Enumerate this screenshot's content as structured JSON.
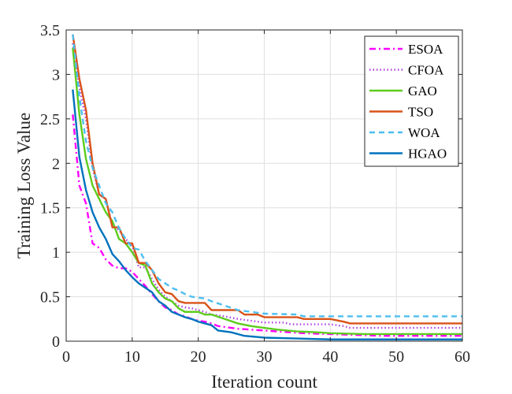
{
  "chart_data": {
    "type": "line",
    "title": "",
    "xlabel": "Iteration count",
    "ylabel": "Training Loss Value",
    "xlim": [
      0,
      60
    ],
    "ylim": [
      0,
      3.5
    ],
    "xticks": [
      0,
      10,
      20,
      30,
      40,
      50,
      60
    ],
    "yticks": [
      0,
      0.5,
      1,
      1.5,
      2,
      2.5,
      3,
      3.5
    ],
    "xtick_labels": [
      "0",
      "10",
      "20",
      "30",
      "40",
      "50",
      "60"
    ],
    "ytick_labels": [
      "0",
      "0.5",
      "1",
      "1.5",
      "2",
      "2.5",
      "3",
      "3.5"
    ],
    "grid": true,
    "legend_position": "top-right",
    "series": [
      {
        "name": "ESOA",
        "color": "#ff00ff",
        "dash": "dashdot",
        "points": [
          [
            1,
            2.55
          ],
          [
            2,
            1.75
          ],
          [
            3,
            1.55
          ],
          [
            4,
            1.1
          ],
          [
            5,
            1.05
          ],
          [
            6,
            0.92
          ],
          [
            7,
            0.85
          ],
          [
            8,
            0.82
          ],
          [
            9,
            0.82
          ],
          [
            10,
            0.78
          ],
          [
            11,
            0.7
          ],
          [
            12,
            0.62
          ],
          [
            13,
            0.53
          ],
          [
            14,
            0.45
          ],
          [
            15,
            0.38
          ],
          [
            16,
            0.35
          ],
          [
            17,
            0.3
          ],
          [
            18,
            0.28
          ],
          [
            19,
            0.25
          ],
          [
            20,
            0.23
          ],
          [
            21,
            0.22
          ],
          [
            22,
            0.2
          ],
          [
            23,
            0.17
          ],
          [
            24,
            0.16
          ],
          [
            25,
            0.15
          ],
          [
            26,
            0.14
          ],
          [
            28,
            0.13
          ],
          [
            30,
            0.12
          ],
          [
            32,
            0.11
          ],
          [
            34,
            0.1
          ],
          [
            36,
            0.09
          ],
          [
            38,
            0.085
          ],
          [
            40,
            0.08
          ],
          [
            42,
            0.075
          ],
          [
            44,
            0.07
          ],
          [
            46,
            0.065
          ],
          [
            48,
            0.06
          ],
          [
            50,
            0.06
          ],
          [
            55,
            0.06
          ],
          [
            60,
            0.06
          ]
        ]
      },
      {
        "name": "CFOA",
        "color": "#b03fe0",
        "dash": "dotted",
        "points": [
          [
            1,
            3.35
          ],
          [
            2,
            2.85
          ],
          [
            3,
            2.5
          ],
          [
            4,
            1.95
          ],
          [
            5,
            1.65
          ],
          [
            6,
            1.6
          ],
          [
            7,
            1.3
          ],
          [
            8,
            1.25
          ],
          [
            9,
            1.15
          ],
          [
            10,
            1.07
          ],
          [
            11,
            0.83
          ],
          [
            12,
            0.83
          ],
          [
            13,
            0.7
          ],
          [
            14,
            0.58
          ],
          [
            15,
            0.5
          ],
          [
            16,
            0.45
          ],
          [
            17,
            0.4
          ],
          [
            18,
            0.38
          ],
          [
            19,
            0.37
          ],
          [
            20,
            0.35
          ],
          [
            21,
            0.33
          ],
          [
            22,
            0.3
          ],
          [
            24,
            0.28
          ],
          [
            26,
            0.25
          ],
          [
            28,
            0.23
          ],
          [
            30,
            0.21
          ],
          [
            33,
            0.21
          ],
          [
            34,
            0.19
          ],
          [
            40,
            0.19
          ],
          [
            42,
            0.17
          ],
          [
            43,
            0.15
          ],
          [
            50,
            0.15
          ],
          [
            60,
            0.15
          ]
        ]
      },
      {
        "name": "GAO",
        "color": "#5ccc1e",
        "dash": "solid",
        "points": [
          [
            1,
            3.3
          ],
          [
            2,
            2.55
          ],
          [
            3,
            2.05
          ],
          [
            4,
            1.75
          ],
          [
            5,
            1.6
          ],
          [
            6,
            1.45
          ],
          [
            7,
            1.35
          ],
          [
            8,
            1.15
          ],
          [
            9,
            1.1
          ],
          [
            10,
            1.0
          ],
          [
            11,
            0.88
          ],
          [
            12,
            0.85
          ],
          [
            13,
            0.65
          ],
          [
            14,
            0.55
          ],
          [
            15,
            0.48
          ],
          [
            16,
            0.45
          ],
          [
            17,
            0.37
          ],
          [
            18,
            0.33
          ],
          [
            20,
            0.33
          ],
          [
            21,
            0.3
          ],
          [
            22,
            0.3
          ],
          [
            24,
            0.25
          ],
          [
            26,
            0.2
          ],
          [
            28,
            0.17
          ],
          [
            30,
            0.15
          ],
          [
            32,
            0.13
          ],
          [
            35,
            0.11
          ],
          [
            38,
            0.1
          ],
          [
            40,
            0.09
          ],
          [
            45,
            0.08
          ],
          [
            50,
            0.08
          ],
          [
            60,
            0.08
          ]
        ]
      },
      {
        "name": "TSO",
        "color": "#d95319",
        "dash": "solid",
        "points": [
          [
            1,
            3.45
          ],
          [
            2,
            2.95
          ],
          [
            3,
            2.6
          ],
          [
            4,
            2.0
          ],
          [
            5,
            1.65
          ],
          [
            6,
            1.6
          ],
          [
            7,
            1.28
          ],
          [
            8,
            1.28
          ],
          [
            9,
            1.1
          ],
          [
            10,
            1.1
          ],
          [
            11,
            0.88
          ],
          [
            12,
            0.88
          ],
          [
            13,
            0.8
          ],
          [
            14,
            0.65
          ],
          [
            15,
            0.55
          ],
          [
            16,
            0.53
          ],
          [
            17,
            0.45
          ],
          [
            18,
            0.43
          ],
          [
            21,
            0.43
          ],
          [
            22,
            0.35
          ],
          [
            26,
            0.35
          ],
          [
            27,
            0.3
          ],
          [
            29,
            0.3
          ],
          [
            30,
            0.27
          ],
          [
            35,
            0.27
          ],
          [
            36,
            0.25
          ],
          [
            40,
            0.25
          ],
          [
            42,
            0.22
          ],
          [
            43,
            0.2
          ],
          [
            50,
            0.2
          ],
          [
            60,
            0.2
          ]
        ]
      },
      {
        "name": "WOA",
        "color": "#4dbeee",
        "dash": "dashed",
        "points": [
          [
            1,
            3.45
          ],
          [
            2,
            2.75
          ],
          [
            3,
            2.25
          ],
          [
            4,
            1.95
          ],
          [
            5,
            1.75
          ],
          [
            6,
            1.55
          ],
          [
            7,
            1.45
          ],
          [
            8,
            1.27
          ],
          [
            9,
            1.15
          ],
          [
            10,
            1.05
          ],
          [
            11,
            1.03
          ],
          [
            12,
            0.9
          ],
          [
            13,
            0.8
          ],
          [
            14,
            0.7
          ],
          [
            15,
            0.65
          ],
          [
            16,
            0.6
          ],
          [
            17,
            0.57
          ],
          [
            18,
            0.53
          ],
          [
            19,
            0.5
          ],
          [
            21,
            0.48
          ],
          [
            22,
            0.45
          ],
          [
            24,
            0.4
          ],
          [
            26,
            0.35
          ],
          [
            28,
            0.33
          ],
          [
            30,
            0.31
          ],
          [
            35,
            0.3
          ],
          [
            36,
            0.28
          ],
          [
            50,
            0.28
          ],
          [
            60,
            0.28
          ]
        ]
      },
      {
        "name": "HGAO",
        "color": "#0072bd",
        "dash": "solid",
        "points": [
          [
            1,
            2.83
          ],
          [
            2,
            2.07
          ],
          [
            3,
            1.7
          ],
          [
            4,
            1.45
          ],
          [
            5,
            1.28
          ],
          [
            6,
            1.15
          ],
          [
            7,
            0.98
          ],
          [
            8,
            0.9
          ],
          [
            9,
            0.8
          ],
          [
            10,
            0.72
          ],
          [
            11,
            0.65
          ],
          [
            12,
            0.6
          ],
          [
            13,
            0.55
          ],
          [
            14,
            0.45
          ],
          [
            15,
            0.4
          ],
          [
            16,
            0.33
          ],
          [
            17,
            0.3
          ],
          [
            18,
            0.27
          ],
          [
            19,
            0.25
          ],
          [
            20,
            0.22
          ],
          [
            21,
            0.2
          ],
          [
            22,
            0.18
          ],
          [
            23,
            0.12
          ],
          [
            25,
            0.1
          ],
          [
            27,
            0.06
          ],
          [
            30,
            0.04
          ],
          [
            35,
            0.03
          ],
          [
            40,
            0.02
          ],
          [
            50,
            0.02
          ],
          [
            60,
            0.02
          ]
        ]
      }
    ]
  }
}
